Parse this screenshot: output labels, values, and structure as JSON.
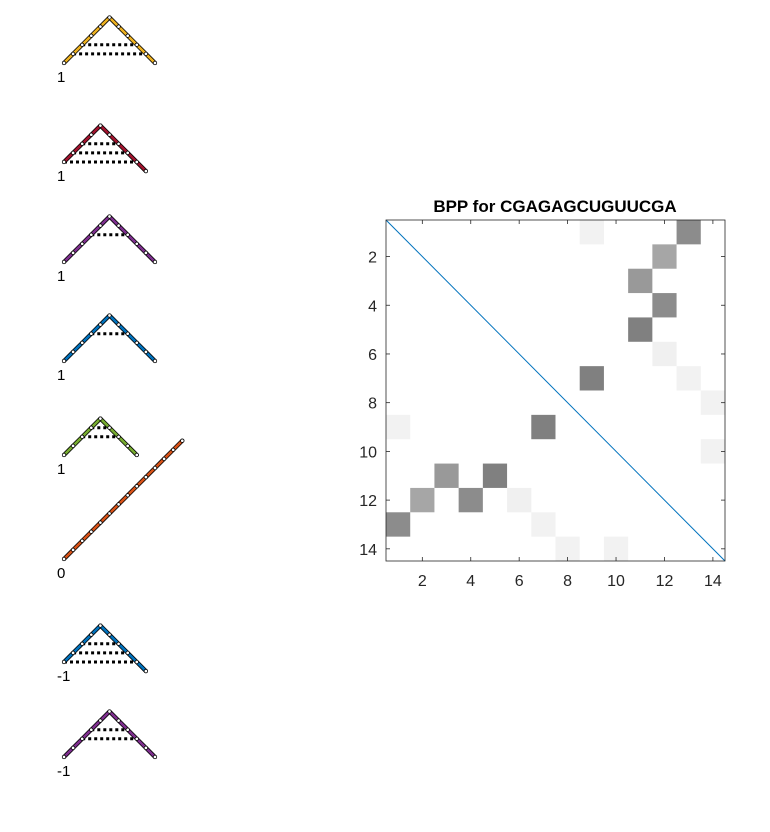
{
  "structures": [
    {
      "color": "#EDB120",
      "label": "1",
      "path": [
        [
          0,
          0
        ],
        [
          1,
          1
        ],
        [
          2,
          2
        ],
        [
          3,
          3
        ],
        [
          4,
          4
        ],
        [
          5,
          5
        ],
        [
          6,
          4
        ],
        [
          7,
          3
        ],
        [
          8,
          2
        ],
        [
          9,
          1
        ],
        [
          10,
          0
        ]
      ],
      "pairs": [
        [
          1,
          9
        ],
        [
          2,
          8
        ]
      ]
    },
    {
      "color": "#A2142F",
      "label": "1",
      "path": [
        [
          0,
          0
        ],
        [
          1,
          1
        ],
        [
          2,
          2
        ],
        [
          3,
          3
        ],
        [
          4,
          4
        ],
        [
          5,
          3
        ],
        [
          6,
          2
        ],
        [
          7,
          1
        ],
        [
          8,
          0
        ],
        [
          9,
          -1
        ]
      ],
      "pairs": [
        [
          0,
          8
        ],
        [
          1,
          7
        ],
        [
          2,
          6
        ]
      ]
    },
    {
      "color": "#7E2F8E",
      "label": "1",
      "path": [
        [
          0,
          0
        ],
        [
          1,
          1
        ],
        [
          2,
          2
        ],
        [
          3,
          3
        ],
        [
          4,
          4
        ],
        [
          5,
          5
        ],
        [
          6,
          4
        ],
        [
          7,
          3
        ],
        [
          8,
          2
        ],
        [
          9,
          1
        ],
        [
          10,
          0
        ]
      ],
      "pairs": [
        [
          3,
          7
        ]
      ]
    },
    {
      "color": "#0072BD",
      "label": "1",
      "path": [
        [
          0,
          0
        ],
        [
          1,
          1
        ],
        [
          2,
          2
        ],
        [
          3,
          3
        ],
        [
          4,
          4
        ],
        [
          5,
          5
        ],
        [
          6,
          4
        ],
        [
          7,
          3
        ],
        [
          8,
          2
        ],
        [
          9,
          1
        ],
        [
          10,
          0
        ]
      ],
      "pairs": [
        [
          3,
          7
        ]
      ]
    },
    {
      "color": "#77AC30",
      "label": "1",
      "path": [
        [
          0,
          0
        ],
        [
          1,
          1
        ],
        [
          2,
          2
        ],
        [
          3,
          3
        ],
        [
          4,
          4
        ],
        [
          5,
          3
        ],
        [
          6,
          2
        ],
        [
          7,
          1
        ],
        [
          8,
          0
        ]
      ],
      "pairs": [
        [
          2,
          6
        ],
        [
          3,
          5
        ]
      ]
    },
    {
      "color": "#D95319",
      "label": "0",
      "path": [
        [
          0,
          0
        ],
        [
          1,
          1
        ],
        [
          2,
          2
        ],
        [
          3,
          3
        ],
        [
          4,
          4
        ],
        [
          5,
          5
        ],
        [
          6,
          6
        ],
        [
          7,
          7
        ],
        [
          8,
          8
        ],
        [
          9,
          9
        ],
        [
          10,
          10
        ],
        [
          11,
          11
        ],
        [
          12,
          12
        ],
        [
          13,
          13
        ]
      ],
      "pairs": []
    },
    {
      "color": "#0072BD",
      "label": "-1",
      "path": [
        [
          0,
          0
        ],
        [
          1,
          1
        ],
        [
          2,
          2
        ],
        [
          3,
          3
        ],
        [
          4,
          4
        ],
        [
          5,
          3
        ],
        [
          6,
          2
        ],
        [
          7,
          1
        ],
        [
          8,
          0
        ],
        [
          9,
          -1
        ]
      ],
      "pairs": [
        [
          0,
          8
        ],
        [
          1,
          7
        ],
        [
          2,
          6
        ]
      ]
    },
    {
      "color": "#7E2F8E",
      "label": "-1",
      "path": [
        [
          0,
          0
        ],
        [
          1,
          1
        ],
        [
          2,
          2
        ],
        [
          3,
          3
        ],
        [
          4,
          4
        ],
        [
          5,
          5
        ],
        [
          6,
          4
        ],
        [
          7,
          3
        ],
        [
          8,
          2
        ],
        [
          9,
          1
        ],
        [
          10,
          0
        ]
      ],
      "pairs": [
        [
          2,
          8
        ],
        [
          3,
          7
        ]
      ]
    }
  ],
  "chart_data": {
    "type": "heatmap",
    "title": "BPP for CGAGAGCUGUUCGA",
    "xlabel": "",
    "ylabel": "",
    "size": 14,
    "xlim": [
      0.5,
      14.5
    ],
    "ylim": [
      0.5,
      14.5
    ],
    "xticks": [
      2,
      4,
      6,
      8,
      10,
      12,
      14
    ],
    "yticks": [
      2,
      4,
      6,
      8,
      10,
      12,
      14
    ],
    "y_direction": "reverse",
    "diagonal_color": "#0072BD",
    "cells": [
      {
        "row": 1,
        "col": 9,
        "p": 0.05
      },
      {
        "row": 1,
        "col": 13,
        "p": 0.45
      },
      {
        "row": 2,
        "col": 12,
        "p": 0.35
      },
      {
        "row": 3,
        "col": 11,
        "p": 0.4
      },
      {
        "row": 4,
        "col": 12,
        "p": 0.45
      },
      {
        "row": 5,
        "col": 11,
        "p": 0.5
      },
      {
        "row": 6,
        "col": 12,
        "p": 0.06
      },
      {
        "row": 7,
        "col": 9,
        "p": 0.5
      },
      {
        "row": 7,
        "col": 13,
        "p": 0.05
      },
      {
        "row": 8,
        "col": 14,
        "p": 0.05
      },
      {
        "row": 9,
        "col": 1,
        "p": 0.05
      },
      {
        "row": 9,
        "col": 7,
        "p": 0.5
      },
      {
        "row": 10,
        "col": 14,
        "p": 0.05
      },
      {
        "row": 11,
        "col": 3,
        "p": 0.4
      },
      {
        "row": 11,
        "col": 5,
        "p": 0.5
      },
      {
        "row": 12,
        "col": 2,
        "p": 0.35
      },
      {
        "row": 12,
        "col": 4,
        "p": 0.45
      },
      {
        "row": 12,
        "col": 6,
        "p": 0.06
      },
      {
        "row": 13,
        "col": 1,
        "p": 0.45
      },
      {
        "row": 13,
        "col": 7,
        "p": 0.05
      },
      {
        "row": 14,
        "col": 8,
        "p": 0.05
      },
      {
        "row": 14,
        "col": 10,
        "p": 0.05
      }
    ]
  }
}
